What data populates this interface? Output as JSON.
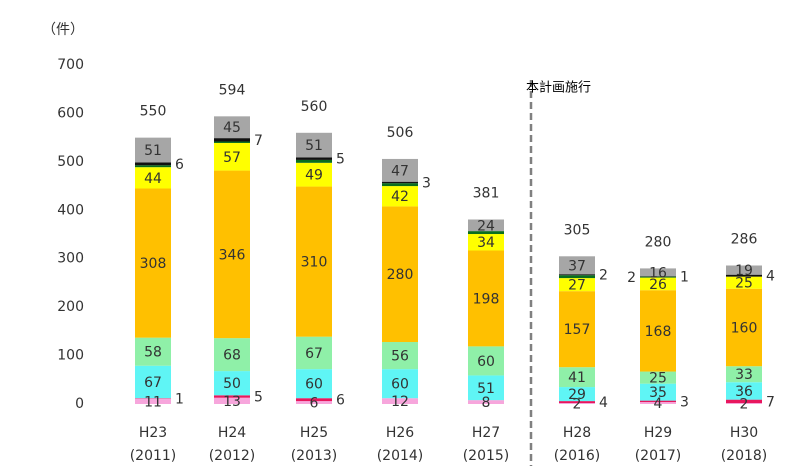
{
  "chart_data": {
    "type": "stacked-bar",
    "y_label": "（件）",
    "annotation": "本計画施行",
    "categories": [
      "H23",
      "H24",
      "H25",
      "H26",
      "H27",
      "H28",
      "H29",
      "H30"
    ],
    "category_sublabels": [
      "(2011)",
      "(2012)",
      "(2013)",
      "(2014)",
      "(2015)",
      "(2016)",
      "(2017)",
      "(2018)"
    ],
    "totals": [
      550,
      594,
      560,
      506,
      381,
      305,
      280,
      286
    ],
    "ylim": [
      0,
      700
    ],
    "yticks": [
      0,
      100,
      200,
      300,
      400,
      500,
      600,
      700
    ],
    "grid": false,
    "series": [
      {
        "color": "#f7a6dc",
        "label_position": "center",
        "values": [
          11,
          13,
          6,
          12,
          8,
          2,
          4,
          2
        ],
        "value_labels": [
          "11",
          "13",
          "6",
          "12",
          "8",
          "2",
          "4",
          "2"
        ]
      },
      {
        "color": "#e8175d",
        "label_position": "right",
        "values": [
          1,
          5,
          6,
          0,
          0,
          4,
          3,
          7
        ],
        "value_labels": [
          "1",
          "5",
          "6",
          null,
          null,
          "4",
          "3",
          "7"
        ]
      },
      {
        "color": "#5ff5f5",
        "label_position": "center",
        "values": [
          67,
          50,
          60,
          60,
          51,
          29,
          35,
          36
        ],
        "value_labels": [
          "67",
          "50",
          "60",
          "60",
          "51",
          "29",
          "35",
          "36"
        ]
      },
      {
        "color": "#8ff0a8",
        "label_position": "center",
        "values": [
          58,
          68,
          67,
          56,
          60,
          41,
          25,
          33
        ],
        "value_labels": [
          "58",
          "68",
          "67",
          "56",
          "60",
          "41",
          "25",
          "33"
        ]
      },
      {
        "color": "#ffc000",
        "label_position": "center",
        "values": [
          308,
          346,
          310,
          280,
          198,
          157,
          168,
          160
        ],
        "value_labels": [
          "308",
          "346",
          "310",
          "280",
          "198",
          "157",
          "168",
          "160"
        ]
      },
      {
        "color": "#ffff00",
        "label_position": "center",
        "values": [
          44,
          57,
          49,
          42,
          34,
          27,
          26,
          25
        ],
        "value_labels": [
          "44",
          "57",
          "49",
          "42",
          "34",
          "27",
          "26",
          "25"
        ]
      },
      {
        "color": "#0a6e1e",
        "label_position": "left",
        "values": [
          4,
          3,
          6,
          6,
          6,
          6,
          2,
          0
        ],
        "value_labels": [
          null,
          null,
          null,
          null,
          null,
          null,
          "2",
          null
        ]
      },
      {
        "color": "#111111",
        "label_position": "right",
        "values": [
          6,
          7,
          5,
          3,
          0,
          2,
          1,
          4
        ],
        "value_labels": [
          "6",
          "7",
          "5",
          "3",
          null,
          "2",
          "1",
          "4"
        ]
      },
      {
        "color": "#a6a6a6",
        "label_position": "center",
        "values": [
          51,
          45,
          51,
          47,
          24,
          37,
          16,
          19
        ],
        "value_labels": [
          "51",
          "45",
          "51",
          "47",
          "24",
          "37",
          "16",
          "19"
        ]
      }
    ]
  }
}
